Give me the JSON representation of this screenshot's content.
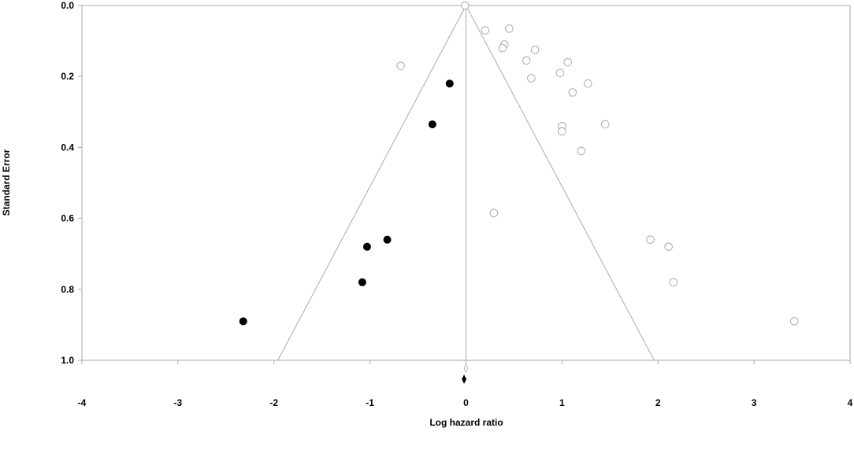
{
  "chart_data": {
    "type": "scatter",
    "title": "",
    "xlabel": "Log hazard ratio",
    "ylabel": "Standard Error",
    "xlim": [
      -4,
      4
    ],
    "ylim": [
      0,
      1
    ],
    "y_inverted": true,
    "grid": false,
    "x_ticks": [
      "-4",
      "-3",
      "-2",
      "-1",
      "0",
      "1",
      "2",
      "3",
      "4"
    ],
    "y_ticks": [
      "0.0",
      "0.2",
      "0.4",
      "0.6",
      "0.8",
      "1.0"
    ],
    "pooled_estimate": 0.0,
    "funnel_limits": {
      "apex": [
        0.0,
        0.0
      ],
      "base_left": [
        -1.96,
        1.0
      ],
      "base_right": [
        1.96,
        1.0
      ]
    },
    "series": [
      {
        "style": "open",
        "color": "#aaaaaa",
        "points": [
          {
            "x": -0.01,
            "y": 0.0
          },
          {
            "x": 0.2,
            "y": 0.07
          },
          {
            "x": 0.45,
            "y": 0.065
          },
          {
            "x": 0.4,
            "y": 0.11
          },
          {
            "x": 0.38,
            "y": 0.12
          },
          {
            "x": 0.72,
            "y": 0.125
          },
          {
            "x": 0.63,
            "y": 0.155
          },
          {
            "x": 1.06,
            "y": 0.16
          },
          {
            "x": -0.68,
            "y": 0.17
          },
          {
            "x": 0.98,
            "y": 0.19
          },
          {
            "x": 0.68,
            "y": 0.205
          },
          {
            "x": 1.27,
            "y": 0.22
          },
          {
            "x": 1.11,
            "y": 0.245
          },
          {
            "x": 1.0,
            "y": 0.34
          },
          {
            "x": 1.45,
            "y": 0.335
          },
          {
            "x": 1.0,
            "y": 0.355
          },
          {
            "x": 1.2,
            "y": 0.41
          },
          {
            "x": 0.29,
            "y": 0.585
          },
          {
            "x": 1.92,
            "y": 0.66
          },
          {
            "x": 2.11,
            "y": 0.68
          },
          {
            "x": 2.16,
            "y": 0.78
          },
          {
            "x": 3.42,
            "y": 0.89
          }
        ]
      },
      {
        "style": "filled",
        "color": "#000000",
        "points": [
          {
            "x": -0.17,
            "y": 0.22
          },
          {
            "x": -0.35,
            "y": 0.335
          },
          {
            "x": -0.82,
            "y": 0.66
          },
          {
            "x": -1.03,
            "y": 0.68
          },
          {
            "x": -1.08,
            "y": 0.78
          },
          {
            "x": -2.32,
            "y": 0.89
          }
        ]
      }
    ],
    "summary_markers": [
      {
        "style": "open",
        "x": 0.0
      },
      {
        "style": "filled",
        "x": -0.02
      }
    ],
    "colors": {
      "axis": "#aaaaaa",
      "funnel": "#aaaaaa",
      "open_marker": "#aaaaaa",
      "filled_marker": "#000000"
    }
  }
}
